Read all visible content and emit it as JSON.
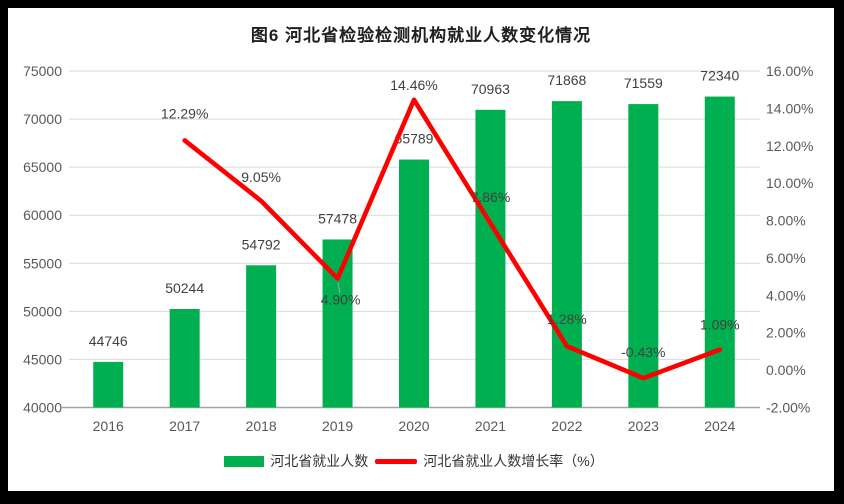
{
  "frame": {
    "background": "#000000",
    "chart_background": "#ffffff"
  },
  "title": {
    "text": "图6 河北省检验检测机构就业人数变化情况"
  },
  "chart_data": {
    "type": "combo",
    "title": "图6 河北省检验检测机构就业人数变化情况",
    "categories": [
      "2016",
      "2017",
      "2018",
      "2019",
      "2020",
      "2021",
      "2022",
      "2023",
      "2024"
    ],
    "series": [
      {
        "name": "河北省就业人数",
        "type": "bar",
        "axis": "left",
        "color": "#00B050",
        "values": [
          44746,
          50244,
          54792,
          57478,
          65789,
          70963,
          71868,
          71559,
          72340
        ],
        "data_labels": [
          "44746",
          "50244",
          "54792",
          "57478",
          "65789",
          "70963",
          "71868",
          "71559",
          "72340"
        ]
      },
      {
        "name": "河北省就业人数增长率（%）",
        "type": "line",
        "axis": "right",
        "color": "#FF0000",
        "values": [
          null,
          12.29,
          9.05,
          4.9,
          14.46,
          7.86,
          1.28,
          -0.43,
          1.09
        ],
        "data_labels": [
          null,
          "12.29%",
          "9.05%",
          "4.90%",
          "14.46%",
          "7.86%",
          "1.28%",
          "-0.43%",
          "1.09%"
        ]
      }
    ],
    "left_axis": {
      "min": 40000,
      "max": 75000,
      "step": 5000,
      "tick_labels": [
        "75000",
        "70000",
        "65000",
        "60000",
        "55000",
        "50000",
        "45000",
        "40000"
      ]
    },
    "right_axis": {
      "min": -2,
      "max": 16,
      "step": 2,
      "tick_labels": [
        "16.00%",
        "14.00%",
        "12.00%",
        "10.00%",
        "8.00%",
        "6.00%",
        "4.00%",
        "2.00%",
        "0.00%",
        "-2.00%"
      ]
    },
    "grid": true,
    "grid_color": "#d9d9d9",
    "axis_line_color": "#a3a3a3",
    "tick_text_color": "#595959",
    "label_text_color": "#404040",
    "legend_position": "bottom"
  }
}
